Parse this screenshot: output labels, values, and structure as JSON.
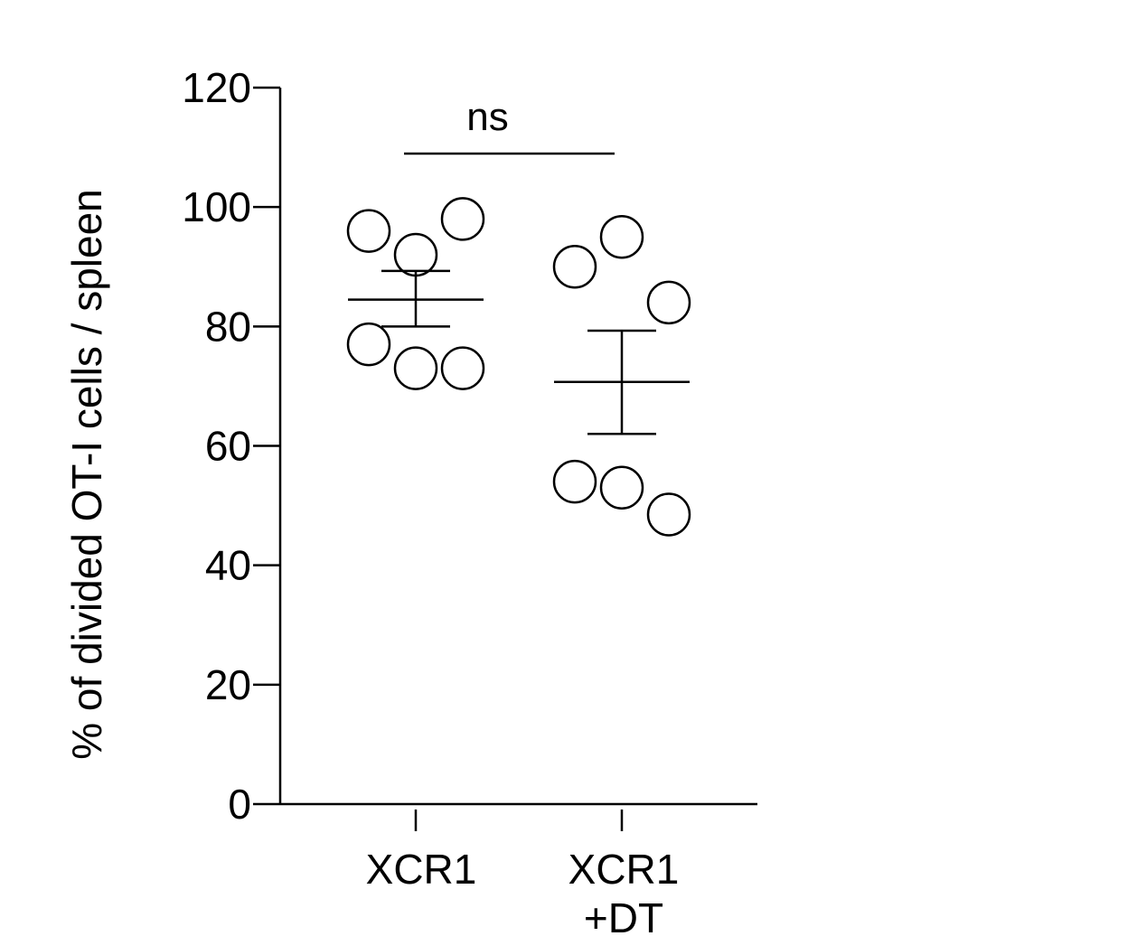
{
  "chart_data": {
    "type": "scatter",
    "ylabel": "% of divided OT-I cells / spleen",
    "ylim": [
      0,
      120
    ],
    "yticks": [
      0,
      20,
      40,
      60,
      80,
      100,
      120
    ],
    "categories": [
      {
        "lines": [
          "XCR1"
        ]
      },
      {
        "lines": [
          "XCR1",
          "+DT"
        ]
      }
    ],
    "groups": [
      {
        "category": "XCR1",
        "points": [
          96,
          92,
          98,
          77,
          73,
          73
        ],
        "mean": 84.5,
        "sem_low": 80,
        "sem_high": 89.3
      },
      {
        "category": "XCR1 +DT",
        "points": [
          90,
          95,
          84,
          54,
          53,
          48.5
        ],
        "mean": 70.7,
        "sem_low": 62,
        "sem_high": 79.3
      }
    ],
    "significance": {
      "label": "ns",
      "from": 0,
      "to": 1
    },
    "colors": {
      "stroke": "#000000",
      "marker_fill": "#ffffff"
    }
  }
}
